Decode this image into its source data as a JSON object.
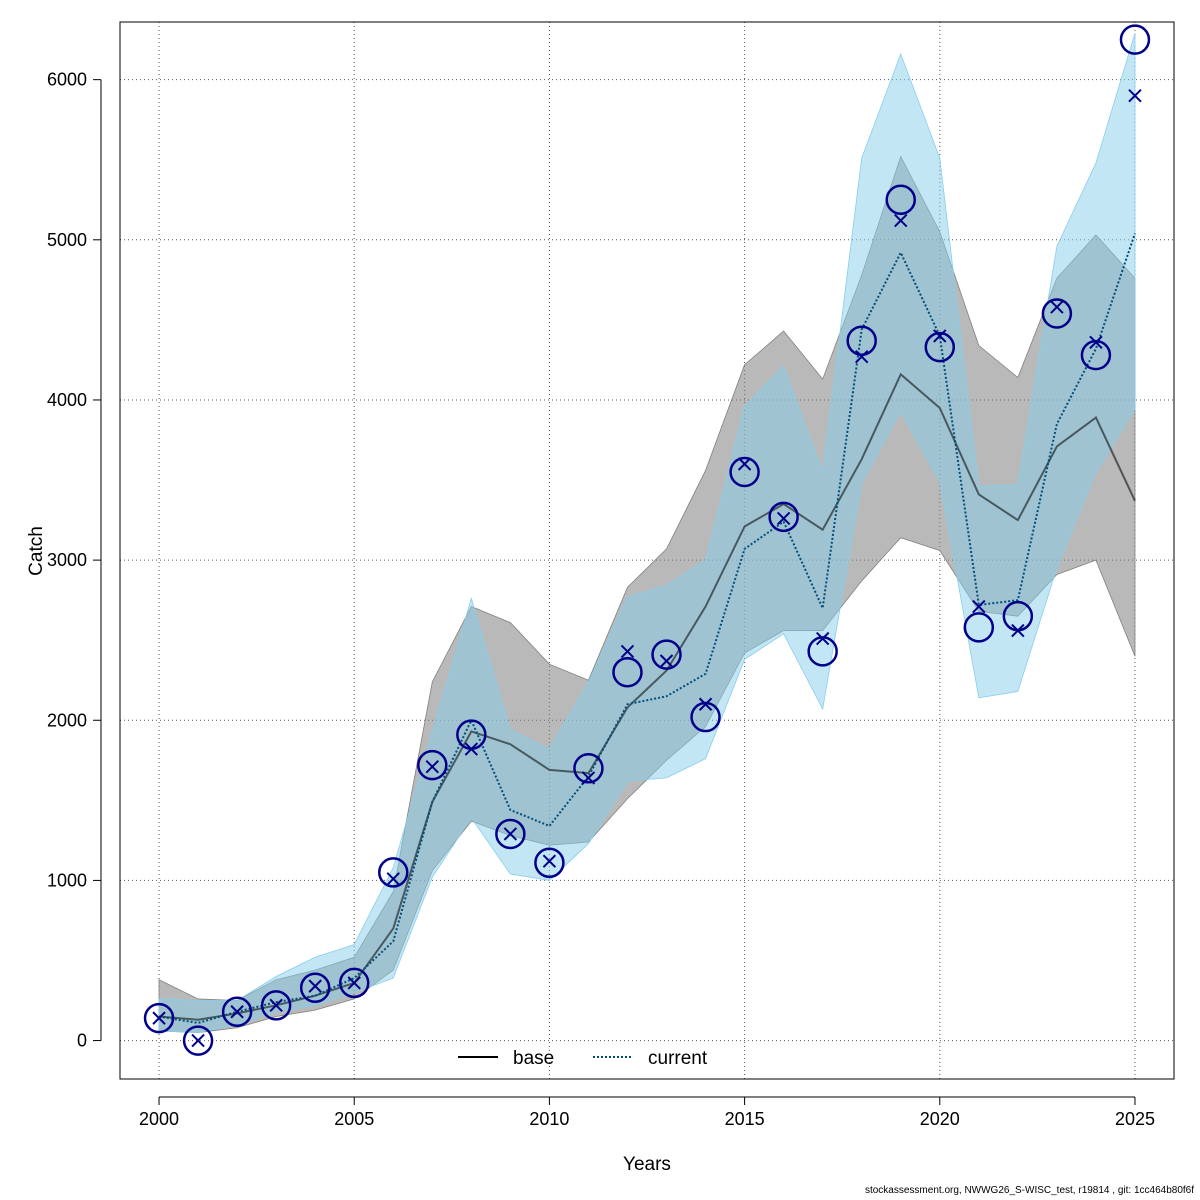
{
  "chart_data": {
    "type": "line",
    "xlabel": "Years",
    "ylabel": "Catch",
    "xlim": [
      1999,
      2026
    ],
    "ylim": [
      -240,
      6360
    ],
    "x_ticks": [
      2000,
      2005,
      2010,
      2015,
      2020,
      2025
    ],
    "y_ticks": [
      0,
      1000,
      2000,
      3000,
      4000,
      5000,
      6000
    ],
    "grid": true,
    "legend_position": "bottom-center",
    "years": [
      2000,
      2001,
      2002,
      2003,
      2004,
      2005,
      2006,
      2007,
      2008,
      2009,
      2010,
      2011,
      2012,
      2013,
      2014,
      2015,
      2016,
      2017,
      2018,
      2019,
      2020,
      2021,
      2022,
      2023,
      2024,
      2025
    ],
    "observed": [
      140,
      0,
      180,
      220,
      330,
      360,
      1050,
      1720,
      1910,
      1290,
      1110,
      1700,
      2300,
      2410,
      2020,
      3550,
      3270,
      2430,
      4370,
      5250,
      4330,
      2580,
      2650,
      4540,
      4280,
      6250
    ],
    "series": [
      {
        "name": "base",
        "color": "#000000",
        "band_color": "#808080",
        "dash": "solid",
        "estimate": [
          150,
          130,
          170,
          220,
          280,
          360,
          700,
          1490,
          1930,
          1850,
          1690,
          1670,
          2080,
          2310,
          2710,
          3210,
          3350,
          3190,
          3630,
          4160,
          3950,
          3410,
          3250,
          3710,
          3890,
          3370
        ],
        "lower": [
          60,
          50,
          80,
          150,
          190,
          260,
          440,
          1060,
          1370,
          1280,
          1220,
          1240,
          1510,
          1750,
          1960,
          2420,
          2560,
          2560,
          2870,
          3140,
          3060,
          2680,
          2650,
          2910,
          3000,
          2400
        ],
        "upper": [
          380,
          260,
          250,
          380,
          440,
          520,
          930,
          2240,
          2710,
          2610,
          2350,
          2250,
          2830,
          3070,
          3560,
          4220,
          4430,
          4130,
          4780,
          5520,
          5050,
          4340,
          4140,
          4760,
          5030,
          4760
        ]
      },
      {
        "name": "current",
        "color": "#004e7a",
        "band_color": "#87ceeb",
        "dash": "dotted",
        "estimate": [
          150,
          110,
          180,
          240,
          280,
          390,
          620,
          1490,
          2000,
          1440,
          1340,
          1650,
          2100,
          2150,
          2290,
          3070,
          3240,
          2700,
          4440,
          4920,
          4400,
          2720,
          2750,
          3850,
          4320,
          5040
        ],
        "lower": [
          60,
          50,
          100,
          180,
          220,
          300,
          390,
          1020,
          1390,
          1040,
          1000,
          1230,
          1620,
          1640,
          1760,
          2380,
          2540,
          2070,
          3480,
          3930,
          3490,
          2140,
          2180,
          2950,
          3550,
          3940
        ],
        "upper": [
          260,
          250,
          250,
          400,
          520,
          600,
          1080,
          1930,
          2760,
          1940,
          1820,
          2240,
          2770,
          2840,
          3000,
          3960,
          4210,
          3550,
          5510,
          6160,
          5510,
          3460,
          3470,
          4960,
          5480,
          6290
        ]
      }
    ],
    "predicted": [
      140,
      0,
      180,
      220,
      340,
      360,
      1010,
      1710,
      1820,
      1290,
      1120,
      1640,
      2430,
      2370,
      2100,
      3600,
      3260,
      2510,
      4270,
      5120,
      4400,
      2710,
      2560,
      4580,
      4360,
      5900
    ]
  },
  "footer": {
    "text": "stockassessment.org, NWWG26_S-WISC_test, r19814 , git: 1cc464b80f6f"
  }
}
